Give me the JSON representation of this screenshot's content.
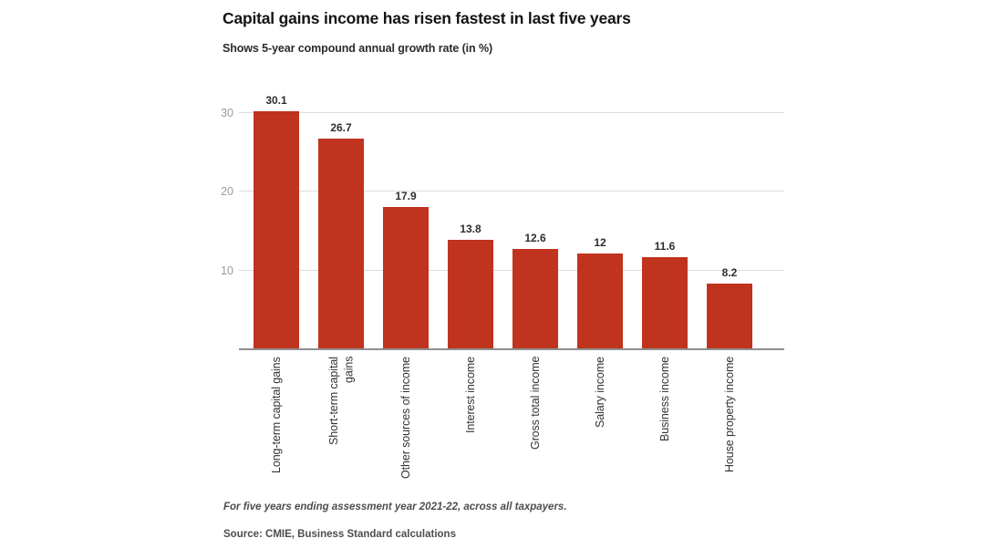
{
  "chart_data": {
    "type": "bar",
    "title": "Capital gains income has risen fastest in last five years",
    "subtitle": "Shows 5-year compound annual growth rate (in %)",
    "categories": [
      "Long-term capital gains",
      "Short-term capital\ngains",
      "Other sources of income",
      "Interest income",
      "Gross total income",
      "Salary income",
      "Business income",
      "House property income"
    ],
    "values": [
      30.1,
      26.7,
      17.9,
      13.8,
      12.6,
      12,
      11.6,
      8.2
    ],
    "value_labels": [
      "30.1",
      "26.7",
      "17.9",
      "13.8",
      "12.6",
      "12",
      "11.6",
      "8.2"
    ],
    "yticks": [
      10,
      20,
      30
    ],
    "ylim": [
      0,
      30
    ],
    "xlabel": "",
    "ylabel": "",
    "grid": true,
    "legend_position": "none",
    "bar_color": "#bf331f",
    "footnote": "For five years ending assessment year 2021-22, across all taxpayers.",
    "source": "Source: CMIE, Business Standard calculations"
  }
}
